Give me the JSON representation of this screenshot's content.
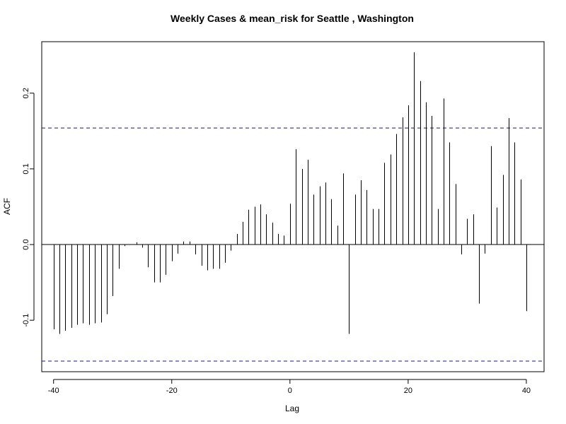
{
  "chart_data": {
    "type": "bar",
    "title": "Weekly Cases & mean_risk for Seattle , Washington",
    "xlabel": "Lag",
    "ylabel": "ACF",
    "xlim": [
      -42,
      43
    ],
    "ylim": [
      -0.168,
      0.268
    ],
    "x_ticks": [
      -40,
      -20,
      0,
      20,
      40
    ],
    "x_tick_labels": [
      "-40",
      "-20",
      "0",
      "20",
      "40"
    ],
    "y_ticks": [
      -0.1,
      0.0,
      0.1,
      0.2
    ],
    "y_tick_labels": [
      "-0.1",
      "0.0",
      "0.1",
      "0.2"
    ],
    "confidence_band": [
      -0.154,
      0.154
    ],
    "line_color": "#000000",
    "band_color": "#1a1a80",
    "lags": [
      -40,
      -39,
      -38,
      -37,
      -36,
      -35,
      -34,
      -33,
      -32,
      -31,
      -30,
      -29,
      -28,
      -27,
      -26,
      -25,
      -24,
      -23,
      -22,
      -21,
      -20,
      -19,
      -18,
      -17,
      -16,
      -15,
      -14,
      -13,
      -12,
      -11,
      -10,
      -9,
      -8,
      -7,
      -6,
      -5,
      -4,
      -3,
      -2,
      -1,
      0,
      1,
      2,
      3,
      4,
      5,
      6,
      7,
      8,
      9,
      10,
      11,
      12,
      13,
      14,
      15,
      16,
      17,
      18,
      19,
      20,
      21,
      22,
      23,
      24,
      25,
      26,
      27,
      28,
      29,
      30,
      31,
      32,
      33,
      34,
      35,
      36,
      37,
      38,
      39,
      40
    ],
    "values": [
      -0.112,
      -0.118,
      -0.114,
      -0.11,
      -0.106,
      -0.104,
      -0.106,
      -0.104,
      -0.103,
      -0.092,
      -0.068,
      -0.032,
      -0.002,
      0.0,
      0.003,
      -0.004,
      -0.03,
      -0.05,
      -0.05,
      -0.04,
      -0.022,
      -0.012,
      0.004,
      0.004,
      -0.013,
      -0.028,
      -0.034,
      -0.032,
      -0.032,
      -0.024,
      -0.008,
      0.014,
      0.03,
      0.046,
      0.05,
      0.053,
      0.04,
      0.029,
      0.014,
      0.012,
      0.054,
      0.126,
      0.1,
      0.112,
      0.066,
      0.077,
      0.082,
      0.06,
      0.025,
      0.094,
      -0.118,
      0.066,
      0.085,
      0.072,
      0.047,
      0.047,
      0.108,
      0.119,
      0.146,
      0.168,
      0.184,
      0.254,
      0.216,
      0.188,
      0.17,
      0.047,
      0.193,
      0.135,
      0.08,
      -0.013,
      0.034,
      0.04,
      -0.078,
      -0.012,
      0.13,
      0.049,
      0.092,
      0.167,
      0.135,
      0.086,
      -0.088
    ]
  }
}
